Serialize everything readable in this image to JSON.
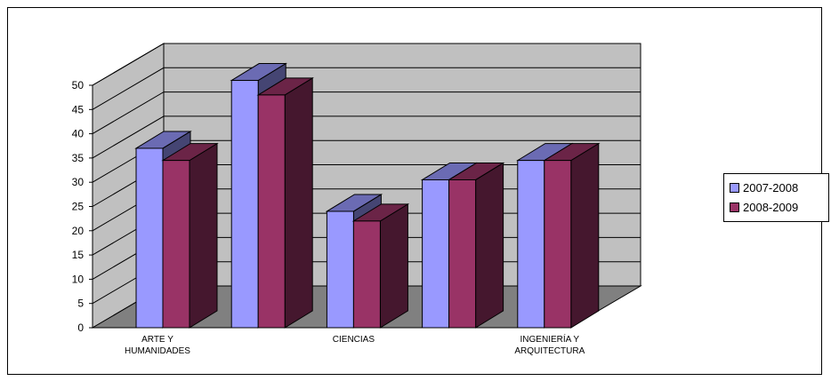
{
  "chart_data": {
    "type": "bar",
    "categories": [
      "ARTE Y HUMANIDADES",
      "",
      "CIENCIAS",
      "",
      "INGENIERÍA Y ARQUITECTURA"
    ],
    "category_labels": [
      [
        "ARTE Y",
        "HUMANIDADES"
      ],
      [
        ""
      ],
      [
        "CIENCIAS"
      ],
      [
        ""
      ],
      [
        "INGENIERÍA Y",
        "ARQUITECTURA"
      ]
    ],
    "series": [
      {
        "name": "2007-2008",
        "values": [
          37,
          51,
          24,
          30.5,
          34.5
        ],
        "color": "#9999ff"
      },
      {
        "name": "2008-2009",
        "values": [
          34.5,
          48,
          22,
          30.5,
          34.5
        ],
        "color": "#993366"
      }
    ],
    "ylim": [
      0,
      50
    ],
    "yticks": [
      "0",
      "5",
      "10",
      "15",
      "20",
      "25",
      "30",
      "35",
      "40",
      "45",
      "50"
    ],
    "grid": true,
    "legend": "right",
    "style": "3d-clustered-column",
    "colors": {
      "wall": "#c0c0c0",
      "floor": "#808080",
      "grid": "#000000"
    }
  }
}
